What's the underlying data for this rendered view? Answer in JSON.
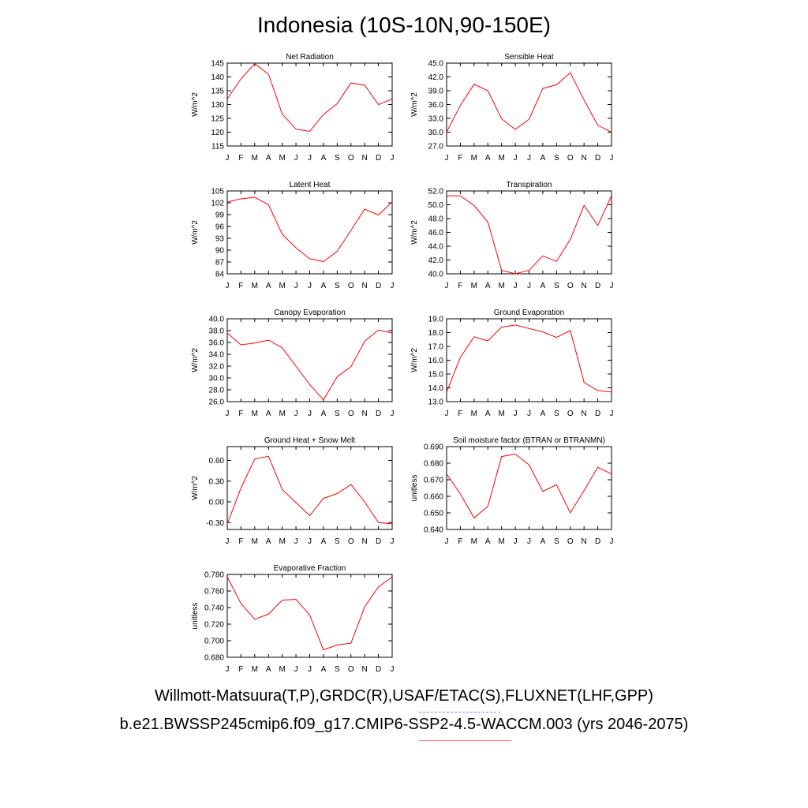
{
  "title": "Indonesia (10S-10N,90-150E)",
  "months": [
    "J",
    "F",
    "M",
    "A",
    "M",
    "J",
    "J",
    "A",
    "S",
    "O",
    "N",
    "D",
    "J"
  ],
  "line_color": "#ff0000",
  "chart_data": [
    {
      "type": "line",
      "title": "Net Radiation",
      "ylabel": "W/m^2",
      "ylim": [
        115,
        145
      ],
      "yticks": [
        115,
        120,
        125,
        130,
        135,
        140,
        145
      ],
      "ytick_labels": [
        "115",
        "120",
        "125",
        "130",
        "135",
        "140",
        "145"
      ],
      "x": [
        "J",
        "F",
        "M",
        "A",
        "M",
        "J",
        "J",
        "A",
        "S",
        "O",
        "N",
        "D",
        "J"
      ],
      "values": [
        132.0,
        139.3,
        144.8,
        141.0,
        126.6,
        121.1,
        120.3,
        126.4,
        130.3,
        137.8,
        137.0,
        130.0,
        132.0
      ]
    },
    {
      "type": "line",
      "title": "Sensible Heat",
      "ylabel": "W/m^2",
      "ylim": [
        27.0,
        45.0
      ],
      "yticks": [
        27,
        30,
        33,
        36,
        39,
        42,
        45
      ],
      "ytick_labels": [
        "27.0",
        "30.0",
        "33.0",
        "36.0",
        "39.0",
        "42.0",
        "45.0"
      ],
      "x": [
        "J",
        "F",
        "M",
        "A",
        "M",
        "J",
        "J",
        "A",
        "S",
        "O",
        "N",
        "D",
        "J"
      ],
      "values": [
        30.0,
        35.8,
        40.4,
        39.0,
        32.9,
        30.6,
        32.8,
        39.5,
        40.3,
        42.9,
        37.0,
        31.5,
        30.0
      ]
    },
    {
      "type": "line",
      "title": "Latent Heat",
      "ylabel": "W/m^2",
      "ylim": [
        84,
        105
      ],
      "yticks": [
        84,
        87,
        90,
        93,
        96,
        99,
        102,
        105
      ],
      "ytick_labels": [
        "84",
        "87",
        "90",
        "93",
        "96",
        "99",
        "102",
        "105"
      ],
      "x": [
        "J",
        "F",
        "M",
        "A",
        "M",
        "J",
        "J",
        "A",
        "S",
        "O",
        "N",
        "D",
        "J"
      ],
      "values": [
        102.2,
        103.0,
        103.4,
        101.5,
        94.0,
        90.6,
        87.8,
        87.1,
        89.7,
        95.0,
        100.4,
        98.9,
        102.2
      ]
    },
    {
      "type": "line",
      "title": "Transpiration",
      "ylabel": "W/m^2",
      "ylim": [
        40.0,
        52.0
      ],
      "yticks": [
        40,
        42,
        44,
        46,
        48,
        50,
        52
      ],
      "ytick_labels": [
        "40.0",
        "42.0",
        "44.0",
        "46.0",
        "48.0",
        "50.0",
        "52.0"
      ],
      "x": [
        "J",
        "F",
        "M",
        "A",
        "M",
        "J",
        "J",
        "A",
        "S",
        "O",
        "N",
        "D",
        "J"
      ],
      "values": [
        51.3,
        51.3,
        49.9,
        47.5,
        40.5,
        40.0,
        40.5,
        42.6,
        41.8,
        45.0,
        49.9,
        47.0,
        51.3
      ]
    },
    {
      "type": "line",
      "title": "Canopy Evaporation",
      "ylabel": "W/m^2",
      "ylim": [
        26.0,
        40.0
      ],
      "yticks": [
        26,
        28,
        30,
        32,
        34,
        36,
        38,
        40
      ],
      "ytick_labels": [
        "26.0",
        "28.0",
        "30.0",
        "32.0",
        "34.0",
        "36.0",
        "38.0",
        "40.0"
      ],
      "x": [
        "J",
        "F",
        "M",
        "A",
        "M",
        "J",
        "J",
        "A",
        "S",
        "O",
        "N",
        "D",
        "J"
      ],
      "values": [
        37.6,
        35.6,
        35.9,
        36.4,
        35.1,
        32.0,
        28.9,
        26.3,
        30.2,
        31.9,
        36.2,
        38.1,
        37.6
      ]
    },
    {
      "type": "line",
      "title": "Ground Evaporation",
      "ylabel": "W/m^2",
      "ylim": [
        13.0,
        19.0
      ],
      "yticks": [
        13,
        14,
        15,
        16,
        17,
        18,
        19
      ],
      "ytick_labels": [
        "13.0",
        "14.0",
        "15.0",
        "16.0",
        "17.0",
        "18.0",
        "19.0"
      ],
      "x": [
        "J",
        "F",
        "M",
        "A",
        "M",
        "J",
        "J",
        "A",
        "S",
        "O",
        "N",
        "D",
        "J"
      ],
      "values": [
        13.7,
        16.2,
        17.7,
        17.4,
        18.4,
        18.55,
        18.3,
        18.05,
        17.65,
        18.15,
        14.4,
        13.8,
        13.7
      ]
    },
    {
      "type": "line",
      "title": "Ground Heat + Snow Melt",
      "ylabel": "W/m^2",
      "ylim": [
        -0.4,
        0.8
      ],
      "yticks": [
        -0.3,
        0.0,
        0.3,
        0.6
      ],
      "ytick_labels": [
        "-0.30",
        "0.00",
        "0.30",
        "0.60"
      ],
      "x": [
        "J",
        "F",
        "M",
        "A",
        "M",
        "J",
        "J",
        "A",
        "S",
        "O",
        "N",
        "D",
        "J"
      ],
      "values": [
        -0.32,
        0.2,
        0.62,
        0.66,
        0.18,
        -0.01,
        -0.2,
        0.05,
        0.12,
        0.25,
        0.0,
        -0.3,
        -0.32
      ]
    },
    {
      "type": "line",
      "title": "Soil moisture factor (BTRAN or BTRANMN)",
      "ylabel": "unitless",
      "ylim": [
        0.64,
        0.69
      ],
      "yticks": [
        0.64,
        0.65,
        0.66,
        0.67,
        0.68,
        0.69
      ],
      "ytick_labels": [
        "0.640",
        "0.650",
        "0.660",
        "0.670",
        "0.680",
        "0.690"
      ],
      "x": [
        "J",
        "F",
        "M",
        "A",
        "M",
        "J",
        "J",
        "A",
        "S",
        "O",
        "N",
        "D",
        "J"
      ],
      "values": [
        0.6735,
        0.6615,
        0.647,
        0.654,
        0.684,
        0.6855,
        0.679,
        0.663,
        0.667,
        0.65,
        0.6635,
        0.6775,
        0.6735
      ]
    },
    {
      "type": "line",
      "title": "Evaporative Fraction",
      "ylabel": "unitless",
      "ylim": [
        0.68,
        0.78
      ],
      "yticks": [
        0.68,
        0.7,
        0.72,
        0.74,
        0.76,
        0.78
      ],
      "ytick_labels": [
        "0.680",
        "0.700",
        "0.720",
        "0.740",
        "0.760",
        "0.780"
      ],
      "x": [
        "J",
        "F",
        "M",
        "A",
        "M",
        "J",
        "J",
        "A",
        "S",
        "O",
        "N",
        "D",
        "J"
      ],
      "values": [
        0.777,
        0.745,
        0.726,
        0.732,
        0.749,
        0.75,
        0.731,
        0.689,
        0.695,
        0.697,
        0.741,
        0.765,
        0.777
      ]
    }
  ],
  "footer": {
    "observations": "Willmott-Matsuura(T,P),GRDC(R),USAF/ETAC(S),FLUXNET(LHF,GPP)",
    "case": "b.e21.BWSSP245cmip6.f09_g17.CMIP6-SSP2-4.5-WACCM.003 (yrs 2046-2075)",
    "observations_line_color": "#8080ff",
    "case_line_color": "#ff8080"
  }
}
